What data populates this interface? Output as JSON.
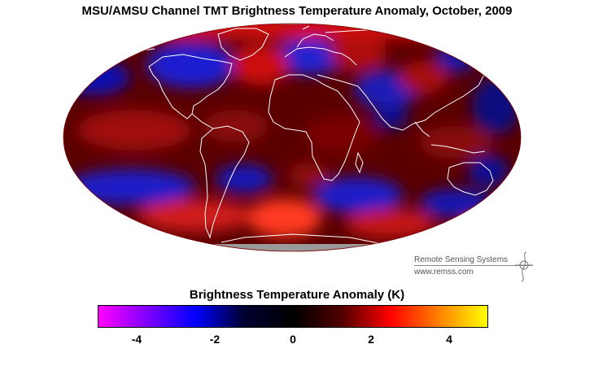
{
  "title": "MSU/AMSU Channel TMT Brightness Temperature Anomaly, October, 2009",
  "map": {
    "projection": "Mollweide",
    "variable": "TMT brightness temperature anomaly",
    "period": "October, 2009",
    "colors": {
      "land_outline": "#ffffff",
      "missing_data": "#9a9a9a"
    }
  },
  "credit": {
    "organization": "Remote Sensing Systems",
    "url": "www.remss.com"
  },
  "colorbar": {
    "title": "Brightness Temperature Anomaly (K)",
    "range": [
      -5,
      5
    ],
    "ticks": [
      {
        "value": -4,
        "label": "-4"
      },
      {
        "value": -2,
        "label": "-2"
      },
      {
        "value": 0,
        "label": "0"
      },
      {
        "value": 2,
        "label": "2"
      },
      {
        "value": 4,
        "label": "4"
      }
    ],
    "stops": [
      "#ff00ff",
      "#8000ff",
      "#0000ff",
      "#000030",
      "#000000",
      "#500000",
      "#ff0000",
      "#ff8000",
      "#ffff00"
    ]
  }
}
